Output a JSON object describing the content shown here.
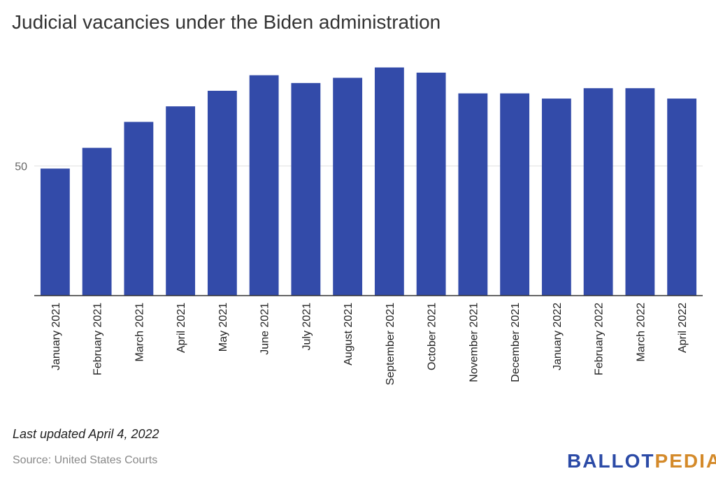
{
  "chart_data": {
    "type": "bar",
    "title": "Judicial vacancies under the Biden administration",
    "categories": [
      "January 2021",
      "February 2021",
      "March 2021",
      "April 2021",
      "May 2021",
      "June 2021",
      "July 2021",
      "August 2021",
      "September 2021",
      "October 2021",
      "November 2021",
      "December 2021",
      "January 2022",
      "February 2022",
      "March 2022",
      "April 2022"
    ],
    "values": [
      49,
      57,
      67,
      73,
      79,
      85,
      82,
      84,
      88,
      86,
      78,
      78,
      76,
      80,
      80,
      76
    ],
    "ylim": [
      0,
      100
    ],
    "yticks": [
      50
    ],
    "grid": true,
    "bar_color": "#334ba9"
  },
  "footer": {
    "updated": "Last updated April 4, 2022",
    "source": "Source: United States Courts"
  },
  "logo": {
    "part1": "BALLOT",
    "part2": "PEDIA",
    "color1": "#2b4aa6",
    "color2": "#d48a2a"
  }
}
